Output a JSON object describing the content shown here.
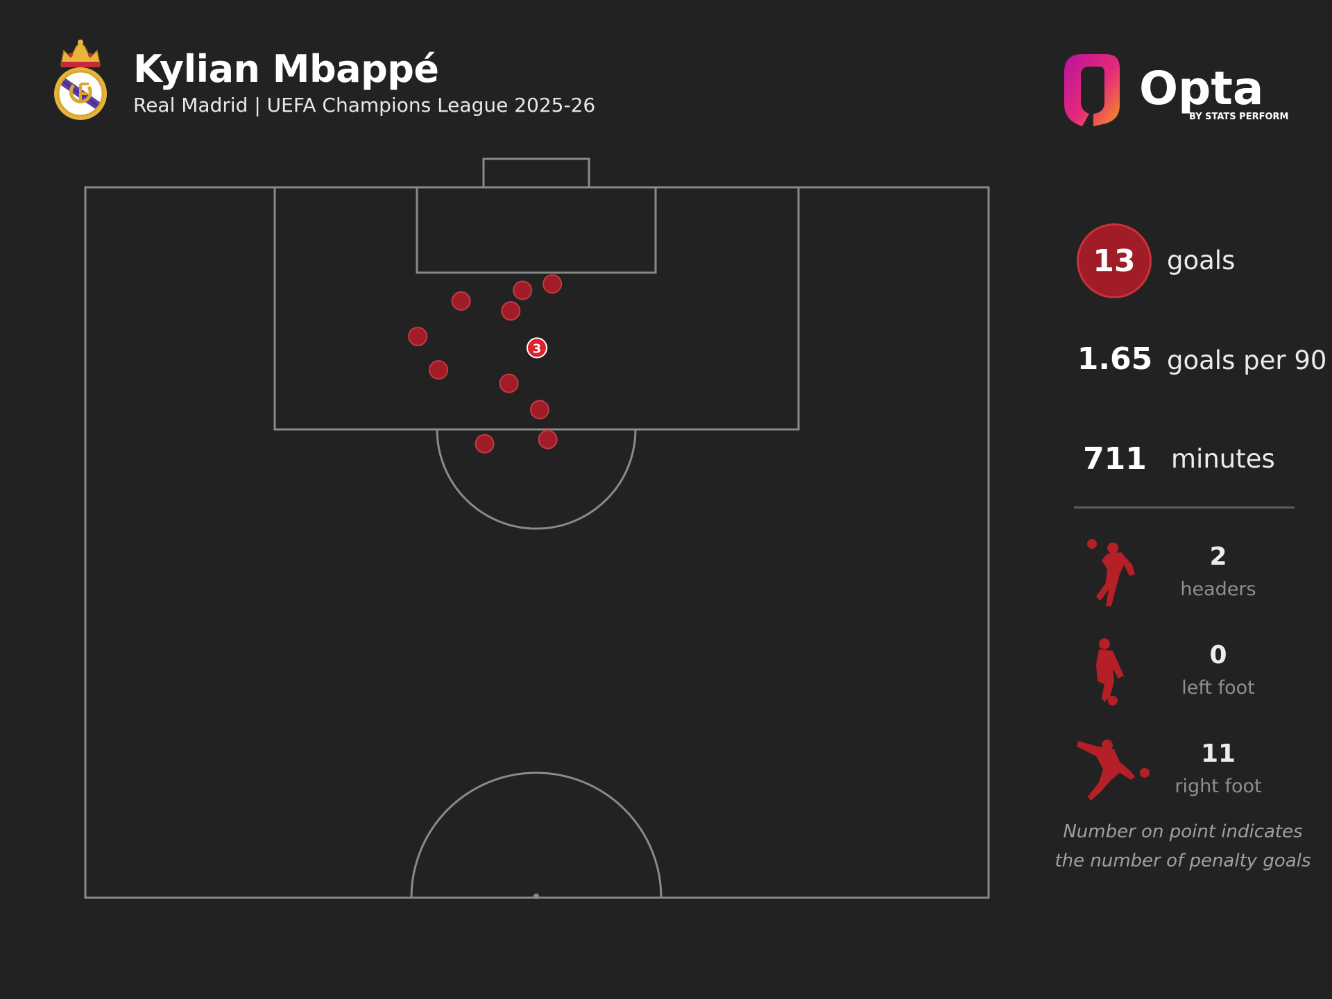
{
  "header": {
    "player_name": "Kylian Mbappé",
    "subtitle": "Real Madrid | UEFA Champions League 2025-26"
  },
  "logo": {
    "brand": "Opta",
    "tagline": "BY STATS PERFORM"
  },
  "stats": {
    "goals_value": "13",
    "goals_label": "goals",
    "gp90_value": "1.65",
    "gp90_label": "goals per 90",
    "minutes_value": "711",
    "minutes_label": "minutes"
  },
  "goal_types": [
    {
      "count": "2",
      "label": "headers",
      "icon": "header-player-icon"
    },
    {
      "count": "0",
      "label": "left foot",
      "icon": "left-foot-player-icon"
    },
    {
      "count": "11",
      "label": "right foot",
      "icon": "right-foot-player-icon"
    }
  ],
  "footnote": "Number on point indicates the number of penalty goals",
  "colors": {
    "background": "#222222",
    "goal_marker": "#a01c26",
    "penalty_marker": "#e0202e",
    "pitch_lines": "#8a8a8a"
  },
  "chart_data": {
    "type": "scatter",
    "description_units": "pitch coordinates: x across pitch width 0-100 (left to right), y metres-like depth 0-100 from goal line to halfway line",
    "xlim": [
      0,
      100
    ],
    "ylim": [
      0,
      100
    ],
    "points": [
      {
        "x": 51.7,
        "y": 13.6,
        "penalty_goals": 0
      },
      {
        "x": 48.4,
        "y": 14.5,
        "penalty_goals": 0
      },
      {
        "x": 41.6,
        "y": 16.0,
        "penalty_goals": 0
      },
      {
        "x": 47.1,
        "y": 17.4,
        "penalty_goals": 0
      },
      {
        "x": 36.8,
        "y": 21.0,
        "penalty_goals": 0
      },
      {
        "x": 50.0,
        "y": 22.6,
        "penalty_goals": 3
      },
      {
        "x": 39.1,
        "y": 25.7,
        "penalty_goals": 0
      },
      {
        "x": 46.9,
        "y": 27.6,
        "penalty_goals": 0
      },
      {
        "x": 50.3,
        "y": 31.3,
        "penalty_goals": 0
      },
      {
        "x": 51.2,
        "y": 35.5,
        "penalty_goals": 0
      },
      {
        "x": 44.2,
        "y": 36.1,
        "penalty_goals": 0
      }
    ]
  }
}
